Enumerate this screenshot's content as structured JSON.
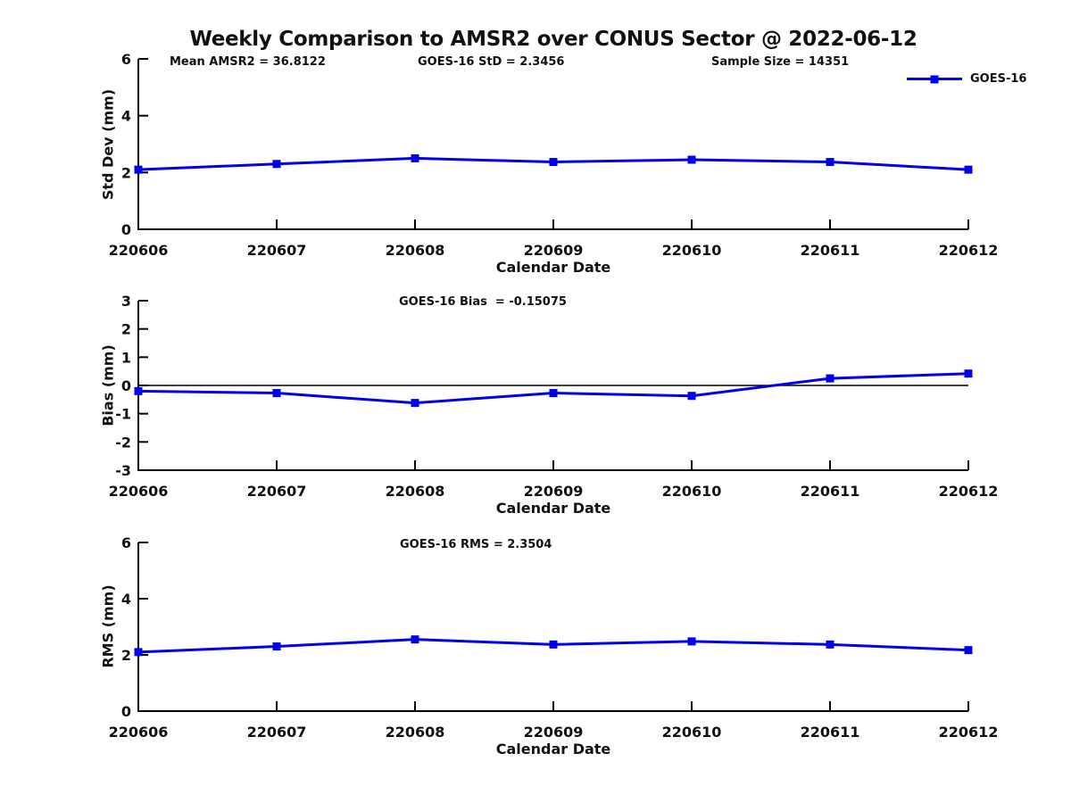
{
  "title": "Weekly Comparison to AMSR2 over CONUS Sector @ 2022-06-12",
  "legend": {
    "label": "GOES-16"
  },
  "colors": {
    "line": "#0000ee",
    "axis": "#000000",
    "text": "#111111",
    "background": "#ffffff"
  },
  "annotations": {
    "mean_amsr2": "Mean AMSR2 = 36.8122",
    "goes16_std": "GOES-16 StD = 2.3456",
    "sample_size": "Sample Size = 14351",
    "goes16_bias": "GOES-16 Bias  = -0.15075",
    "goes16_rms": "GOES-16 RMS = 2.3504"
  },
  "chart_data": [
    {
      "type": "line",
      "name": "std-dev",
      "categories": [
        "220606",
        "220607",
        "220608",
        "220609",
        "220610",
        "220611",
        "220612"
      ],
      "series": [
        {
          "name": "GOES-16",
          "values": [
            2.1,
            2.3,
            2.5,
            2.37,
            2.45,
            2.37,
            2.1
          ]
        }
      ],
      "xlabel": "Calendar Date",
      "ylabel": "Std Dev (mm)",
      "ylim": [
        0,
        6
      ],
      "yticks": [
        0,
        2,
        4,
        6
      ],
      "zero_line": false,
      "grid": false,
      "marker": "square",
      "legend_position": "top-right-outside"
    },
    {
      "type": "line",
      "name": "bias",
      "categories": [
        "220606",
        "220607",
        "220608",
        "220609",
        "220610",
        "220611",
        "220612"
      ],
      "series": [
        {
          "name": "GOES-16",
          "values": [
            -0.2,
            -0.27,
            -0.62,
            -0.27,
            -0.37,
            0.25,
            0.42
          ]
        }
      ],
      "xlabel": "Calendar Date",
      "ylabel": "Bias (mm)",
      "ylim": [
        -3,
        3
      ],
      "yticks": [
        -3,
        -2,
        -1,
        0,
        1,
        2,
        3
      ],
      "zero_line": true,
      "grid": false,
      "marker": "square"
    },
    {
      "type": "line",
      "name": "rms",
      "categories": [
        "220606",
        "220607",
        "220608",
        "220609",
        "220610",
        "220611",
        "220612"
      ],
      "series": [
        {
          "name": "GOES-16",
          "values": [
            2.1,
            2.3,
            2.55,
            2.37,
            2.48,
            2.37,
            2.17
          ]
        }
      ],
      "xlabel": "Calendar Date",
      "ylabel": "RMS (mm)",
      "ylim": [
        0,
        6
      ],
      "yticks": [
        0,
        2,
        4,
        6
      ],
      "zero_line": false,
      "grid": false,
      "marker": "square"
    }
  ]
}
